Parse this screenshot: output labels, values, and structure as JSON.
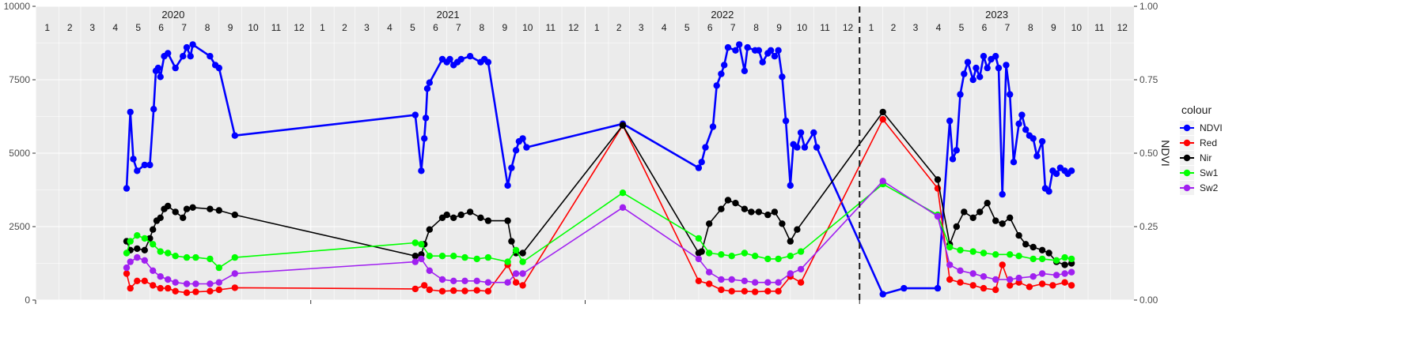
{
  "chart_data": {
    "type": "line",
    "x_unit": "month",
    "xlim": [
      "2020-01-01",
      "2024-01-01"
    ],
    "ylim_left": [
      0,
      10000
    ],
    "ylim_right": [
      0,
      1
    ],
    "y_ticks_left": [
      "0",
      "2500",
      "5000",
      "7500",
      "10000"
    ],
    "y_ticks_right": [
      "0.00",
      "0.25",
      "0.50",
      "0.75",
      "1.00"
    ],
    "ylabel_right": "NDVI",
    "years": [
      "2020",
      "2021",
      "2022",
      "2023"
    ],
    "month_labels": [
      "1",
      "2",
      "3",
      "4",
      "5",
      "6",
      "7",
      "8",
      "9",
      "10",
      "11",
      "12"
    ],
    "vline_date": "2023-01-01",
    "grid": true,
    "legend_title": "colour",
    "legend_position": "right",
    "series": [
      {
        "name": "NDVI",
        "color": "#0000FF",
        "axis": "right",
        "x": [
          "2020-05-01",
          "2020-05-06",
          "2020-05-10",
          "2020-05-15",
          "2020-05-25",
          "2020-06-01",
          "2020-06-06",
          "2020-06-09",
          "2020-06-12",
          "2020-06-15",
          "2020-06-20",
          "2020-06-25",
          "2020-07-05",
          "2020-07-15",
          "2020-07-20",
          "2020-07-25",
          "2020-07-28",
          "2020-08-20",
          "2020-08-27",
          "2020-09-01",
          "2020-09-22",
          "2021-05-20",
          "2021-05-28",
          "2021-06-01",
          "2021-06-03",
          "2021-06-05",
          "2021-06-08",
          "2021-06-25",
          "2021-07-01",
          "2021-07-05",
          "2021-07-10",
          "2021-07-15",
          "2021-07-20",
          "2021-08-01",
          "2021-08-15",
          "2021-08-20",
          "2021-08-25",
          "2021-09-20",
          "2021-09-25",
          "2021-10-01",
          "2021-10-05",
          "2021-10-10",
          "2021-10-15",
          "2022-02-20",
          "2022-06-01",
          "2022-06-05",
          "2022-06-10",
          "2022-06-20",
          "2022-06-25",
          "2022-07-01",
          "2022-07-05",
          "2022-07-10",
          "2022-07-20",
          "2022-07-25",
          "2022-08-01",
          "2022-08-05",
          "2022-08-15",
          "2022-08-20",
          "2022-08-25",
          "2022-09-01",
          "2022-09-05",
          "2022-09-10",
          "2022-09-15",
          "2022-09-20",
          "2022-09-25",
          "2022-10-01",
          "2022-10-05",
          "2022-10-10",
          "2022-10-15",
          "2022-10-20",
          "2022-11-01",
          "2022-11-05",
          "2023-02-01",
          "2023-03-01",
          "2023-04-15",
          "2023-05-01",
          "2023-05-05",
          "2023-05-10",
          "2023-05-15",
          "2023-05-20",
          "2023-05-25",
          "2023-06-01",
          "2023-06-05",
          "2023-06-10",
          "2023-06-15",
          "2023-06-20",
          "2023-06-25",
          "2023-07-01",
          "2023-07-05",
          "2023-07-10",
          "2023-07-15",
          "2023-07-20",
          "2023-07-25",
          "2023-08-01",
          "2023-08-05",
          "2023-08-10",
          "2023-08-15",
          "2023-08-20",
          "2023-08-25",
          "2023-09-01",
          "2023-09-05",
          "2023-09-10",
          "2023-09-15",
          "2023-09-20",
          "2023-09-25",
          "2023-10-01",
          "2023-10-05",
          "2023-10-10"
        ],
        "y": [
          0.38,
          0.64,
          0.48,
          0.44,
          0.46,
          0.46,
          0.65,
          0.78,
          0.79,
          0.76,
          0.83,
          0.84,
          0.79,
          0.83,
          0.86,
          0.83,
          0.87,
          0.83,
          0.8,
          0.79,
          0.56,
          0.63,
          0.44,
          0.55,
          0.62,
          0.72,
          0.74,
          0.82,
          0.81,
          0.82,
          0.8,
          0.81,
          0.82,
          0.83,
          0.81,
          0.82,
          0.81,
          0.39,
          0.45,
          0.51,
          0.54,
          0.55,
          0.52,
          0.6,
          0.45,
          0.47,
          0.52,
          0.59,
          0.73,
          0.77,
          0.8,
          0.86,
          0.85,
          0.87,
          0.78,
          0.86,
          0.85,
          0.85,
          0.81,
          0.84,
          0.85,
          0.83,
          0.85,
          0.76,
          0.61,
          0.39,
          0.53,
          0.52,
          0.57,
          0.52,
          0.57,
          0.52,
          0.02,
          0.04,
          0.04,
          0.61,
          0.48,
          0.51,
          0.7,
          0.77,
          0.81,
          0.75,
          0.79,
          0.76,
          0.83,
          0.79,
          0.82,
          0.83,
          0.79,
          0.36,
          0.8,
          0.7,
          0.47,
          0.6,
          0.63,
          0.58,
          0.56,
          0.55,
          0.49,
          0.54,
          0.38,
          0.37,
          0.44,
          0.43,
          0.45,
          0.44,
          0.43,
          0.44
        ]
      },
      {
        "name": "Red",
        "color": "#FF0000",
        "axis": "left",
        "x": [
          "2020-05-01",
          "2020-05-06",
          "2020-05-15",
          "2020-05-25",
          "2020-06-05",
          "2020-06-15",
          "2020-06-25",
          "2020-07-05",
          "2020-07-20",
          "2020-08-01",
          "2020-08-20",
          "2020-09-01",
          "2020-09-22",
          "2021-05-20",
          "2021-06-01",
          "2021-06-08",
          "2021-06-25",
          "2021-07-10",
          "2021-07-25",
          "2021-08-10",
          "2021-08-25",
          "2021-09-20",
          "2021-10-01",
          "2021-10-10",
          "2022-02-20",
          "2022-06-01",
          "2022-06-15",
          "2022-07-01",
          "2022-07-15",
          "2022-08-01",
          "2022-08-15",
          "2022-09-01",
          "2022-09-15",
          "2022-10-01",
          "2022-10-15",
          "2023-02-01",
          "2023-04-15",
          "2023-05-01",
          "2023-05-15",
          "2023-06-01",
          "2023-06-15",
          "2023-07-01",
          "2023-07-10",
          "2023-07-20",
          "2023-08-01",
          "2023-08-15",
          "2023-09-01",
          "2023-09-15",
          "2023-10-01",
          "2023-10-10"
        ],
        "y": [
          900,
          400,
          650,
          650,
          500,
          400,
          400,
          300,
          250,
          280,
          300,
          350,
          420,
          380,
          500,
          350,
          300,
          320,
          310,
          330,
          300,
          1200,
          600,
          500,
          5950,
          650,
          550,
          350,
          300,
          300,
          280,
          300,
          300,
          800,
          600,
          6150,
          3800,
          700,
          600,
          500,
          400,
          350,
          1200,
          500,
          600,
          450,
          550,
          500,
          600,
          500
        ]
      },
      {
        "name": "Nir",
        "color": "#000000",
        "axis": "left",
        "x": [
          "2020-05-01",
          "2020-05-06",
          "2020-05-15",
          "2020-05-25",
          "2020-06-01",
          "2020-06-05",
          "2020-06-10",
          "2020-06-15",
          "2020-06-20",
          "2020-06-25",
          "2020-07-05",
          "2020-07-15",
          "2020-07-20",
          "2020-07-28",
          "2020-08-20",
          "2020-09-01",
          "2020-09-22",
          "2021-05-20",
          "2021-05-28",
          "2021-06-01",
          "2021-06-08",
          "2021-06-25",
          "2021-07-01",
          "2021-07-10",
          "2021-07-20",
          "2021-08-01",
          "2021-08-15",
          "2021-08-25",
          "2021-09-20",
          "2021-09-25",
          "2021-10-01",
          "2021-10-10",
          "2022-02-20",
          "2022-06-01",
          "2022-06-05",
          "2022-06-15",
          "2022-07-01",
          "2022-07-10",
          "2022-07-20",
          "2022-08-01",
          "2022-08-10",
          "2022-08-20",
          "2022-09-01",
          "2022-09-10",
          "2022-09-20",
          "2022-10-01",
          "2022-10-10",
          "2023-02-01",
          "2023-04-15",
          "2023-05-01",
          "2023-05-10",
          "2023-05-20",
          "2023-06-01",
          "2023-06-10",
          "2023-06-20",
          "2023-07-01",
          "2023-07-10",
          "2023-07-20",
          "2023-08-01",
          "2023-08-10",
          "2023-08-20",
          "2023-09-01",
          "2023-09-10",
          "2023-09-20",
          "2023-10-01",
          "2023-10-10"
        ],
        "y": [
          2000,
          1700,
          1750,
          1700,
          2100,
          2400,
          2700,
          2800,
          3100,
          3200,
          3000,
          2800,
          3100,
          3150,
          3100,
          3050,
          2900,
          1500,
          1550,
          1900,
          2400,
          2800,
          2900,
          2800,
          2900,
          3000,
          2800,
          2700,
          2700,
          2000,
          1600,
          1600,
          5950,
          1600,
          1650,
          2600,
          3100,
          3400,
          3300,
          3100,
          3000,
          3000,
          2900,
          3000,
          2600,
          2000,
          2400,
          6400,
          4100,
          1900,
          2500,
          3000,
          2800,
          3000,
          3300,
          2700,
          2600,
          2800,
          2200,
          1900,
          1800,
          1700,
          1600,
          1300,
          1200,
          1250
        ]
      },
      {
        "name": "Sw1",
        "color": "#00FF00",
        "axis": "left",
        "x": [
          "2020-05-01",
          "2020-05-06",
          "2020-05-15",
          "2020-05-25",
          "2020-06-05",
          "2020-06-15",
          "2020-06-25",
          "2020-07-05",
          "2020-07-20",
          "2020-08-01",
          "2020-08-20",
          "2020-09-01",
          "2020-09-22",
          "2021-05-20",
          "2021-05-28",
          "2021-06-08",
          "2021-06-25",
          "2021-07-10",
          "2021-07-25",
          "2021-08-10",
          "2021-08-25",
          "2021-09-20",
          "2021-10-01",
          "2021-10-10",
          "2022-02-20",
          "2022-06-01",
          "2022-06-15",
          "2022-07-01",
          "2022-07-15",
          "2022-08-01",
          "2022-08-15",
          "2022-09-01",
          "2022-09-15",
          "2022-10-01",
          "2022-10-15",
          "2023-02-01",
          "2023-04-15",
          "2023-05-01",
          "2023-05-15",
          "2023-06-01",
          "2023-06-15",
          "2023-07-01",
          "2023-07-20",
          "2023-08-01",
          "2023-08-20",
          "2023-09-01",
          "2023-09-20",
          "2023-10-01",
          "2023-10-10"
        ],
        "y": [
          1600,
          2000,
          2200,
          2100,
          1900,
          1650,
          1600,
          1500,
          1450,
          1450,
          1400,
          1100,
          1450,
          1950,
          1900,
          1500,
          1500,
          1500,
          1450,
          1400,
          1450,
          1300,
          1700,
          1300,
          3650,
          2100,
          1600,
          1550,
          1500,
          1600,
          1500,
          1400,
          1400,
          1500,
          1650,
          3950,
          2900,
          1800,
          1700,
          1650,
          1600,
          1550,
          1550,
          1500,
          1400,
          1400,
          1350,
          1450,
          1400
        ]
      },
      {
        "name": "Sw2",
        "color": "#A020F0",
        "axis": "left",
        "x": [
          "2020-05-01",
          "2020-05-06",
          "2020-05-15",
          "2020-05-25",
          "2020-06-05",
          "2020-06-15",
          "2020-06-25",
          "2020-07-05",
          "2020-07-20",
          "2020-08-01",
          "2020-08-20",
          "2020-09-01",
          "2020-09-22",
          "2021-05-20",
          "2021-05-28",
          "2021-06-08",
          "2021-06-25",
          "2021-07-10",
          "2021-07-25",
          "2021-08-10",
          "2021-08-25",
          "2021-09-20",
          "2021-10-01",
          "2021-10-10",
          "2022-02-20",
          "2022-06-01",
          "2022-06-15",
          "2022-07-01",
          "2022-07-15",
          "2022-08-01",
          "2022-08-15",
          "2022-09-01",
          "2022-09-15",
          "2022-10-01",
          "2022-10-15",
          "2023-02-01",
          "2023-04-15",
          "2023-05-01",
          "2023-05-15",
          "2023-06-01",
          "2023-06-15",
          "2023-07-01",
          "2023-07-20",
          "2023-08-01",
          "2023-08-20",
          "2023-09-01",
          "2023-09-20",
          "2023-10-01",
          "2023-10-10"
        ],
        "y": [
          1100,
          1300,
          1450,
          1350,
          1000,
          800,
          700,
          600,
          550,
          550,
          550,
          600,
          900,
          1300,
          1400,
          1000,
          700,
          650,
          650,
          650,
          600,
          600,
          900,
          900,
          3150,
          1400,
          950,
          700,
          700,
          650,
          600,
          600,
          600,
          900,
          1050,
          4050,
          2850,
          1200,
          1000,
          900,
          800,
          700,
          700,
          750,
          800,
          900,
          850,
          900,
          950
        ]
      }
    ]
  }
}
